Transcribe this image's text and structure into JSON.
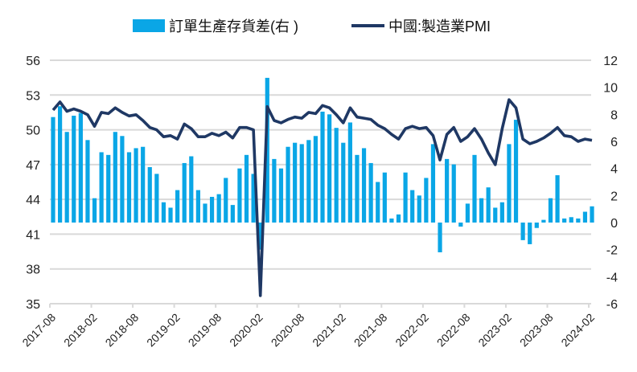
{
  "chart_data": {
    "type": "bar+line",
    "title": "",
    "legend": {
      "placement": "top-center",
      "entries": [
        "訂單生產存貨差(右 )",
        "中國:製造業PMI"
      ]
    },
    "x_start": "2017-08",
    "x_tick_labels": [
      "2017-08",
      "2018-02",
      "2018-08",
      "2019-02",
      "2019-08",
      "2020-02",
      "2020-08",
      "2021-02",
      "2021-08",
      "2022-02",
      "2022-08",
      "2023-02",
      "2023-08",
      "2024-02"
    ],
    "y_left": {
      "min": 35,
      "max": 56,
      "ticks": [
        35,
        38,
        41,
        44,
        47,
        50,
        53,
        56
      ]
    },
    "y_right": {
      "min": -6,
      "max": 12,
      "ticks": [
        -6,
        -4,
        -2,
        0,
        2,
        4,
        6,
        8,
        10,
        12
      ]
    },
    "grid": true,
    "colors": {
      "bars": "#0aa6e6",
      "line": "#1f3864",
      "grid": "#d9d9d9"
    },
    "series": [
      {
        "name": "訂單生產存貨差(右 )",
        "type": "bar",
        "axis": "right",
        "values": [
          7.8,
          8.6,
          6.7,
          7.9,
          8.1,
          6.1,
          1.8,
          5.2,
          5.0,
          6.7,
          6.4,
          5.2,
          5.5,
          5.6,
          4.1,
          3.6,
          1.5,
          1.1,
          2.4,
          4.4,
          4.9,
          2.4,
          1.4,
          1.9,
          2.1,
          3.3,
          1.3,
          4.0,
          5.0,
          3.6,
          -2.0,
          10.7,
          4.7,
          4.0,
          5.6,
          5.9,
          5.8,
          6.1,
          6.4,
          8.2,
          8.0,
          7.0,
          5.9,
          7.4,
          5.0,
          5.5,
          4.4,
          3.0,
          3.7,
          0.3,
          0.6,
          3.7,
          2.4,
          2.0,
          3.3,
          5.8,
          -2.2,
          4.7,
          4.3,
          -0.3,
          1.4,
          5.0,
          1.8,
          2.6,
          1.1,
          1.5,
          5.8,
          7.6,
          -1.3,
          -1.6,
          -0.4,
          0.2,
          1.8,
          3.5,
          0.3,
          0.4,
          0.3,
          0.8,
          1.2
        ]
      },
      {
        "name": "中國:製造業PMI",
        "type": "line",
        "axis": "left",
        "values": [
          51.7,
          52.4,
          51.6,
          51.8,
          51.6,
          51.3,
          50.3,
          51.5,
          51.4,
          51.9,
          51.5,
          51.2,
          51.3,
          50.8,
          50.2,
          50.0,
          49.4,
          49.5,
          49.2,
          50.5,
          50.1,
          49.4,
          49.4,
          49.7,
          49.5,
          49.8,
          49.3,
          50.2,
          50.2,
          50.0,
          35.7,
          52.0,
          50.8,
          50.6,
          50.9,
          51.1,
          51.0,
          51.5,
          51.4,
          52.1,
          51.9,
          51.3,
          50.6,
          51.9,
          51.1,
          51.0,
          50.9,
          50.4,
          50.1,
          49.6,
          49.2,
          50.1,
          50.3,
          50.1,
          50.2,
          49.5,
          47.4,
          49.6,
          50.2,
          49.0,
          49.4,
          50.1,
          49.2,
          48.0,
          47.0,
          50.1,
          52.6,
          51.9,
          49.2,
          48.8,
          49.0,
          49.3,
          49.7,
          50.2,
          49.5,
          49.4,
          49.0,
          49.2,
          49.1
        ]
      }
    ]
  }
}
